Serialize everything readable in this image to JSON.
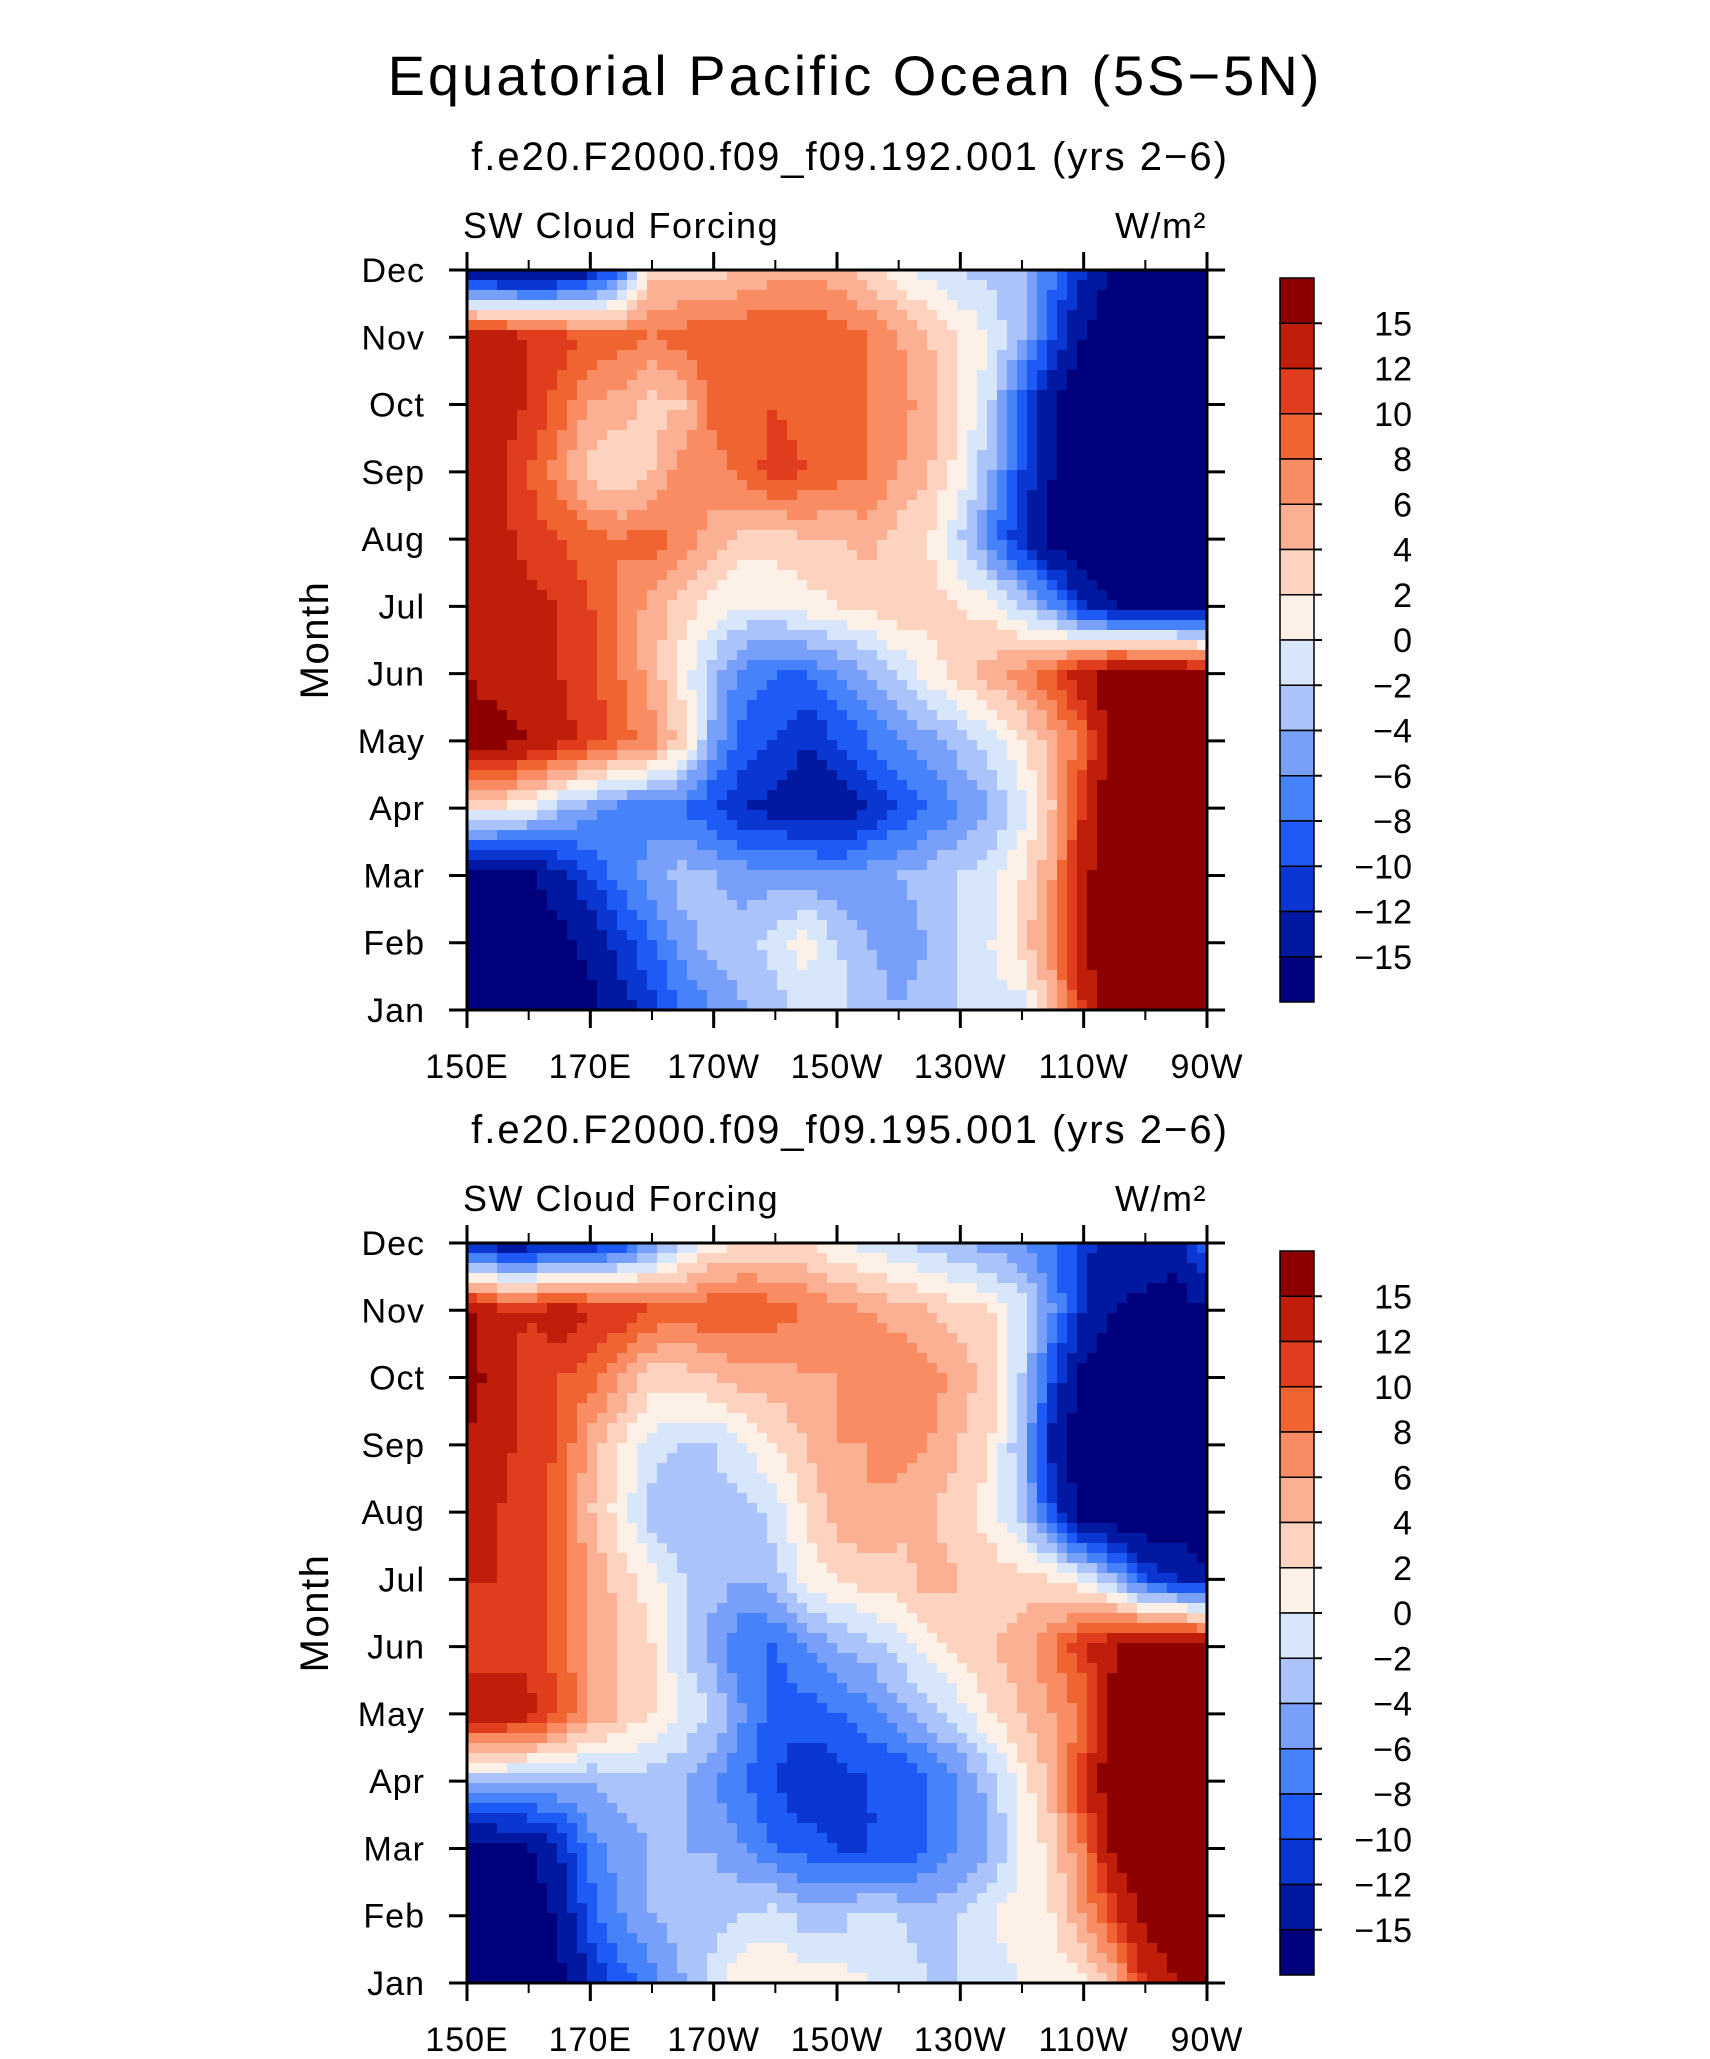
{
  "title": "Equatorial Pacific Ocean (5S−5N)",
  "chart_data": [
    {
      "type": "heatmap",
      "title": "f.e20.F2000.f09_f09.192.001 (yrs 2−6)",
      "variable": "SW Cloud Forcing",
      "units": "W/m²",
      "ylabel": "Month",
      "xlabel": "",
      "x_ticks": [
        "150E",
        "170E",
        "170W",
        "150W",
        "130W",
        "110W",
        "90W"
      ],
      "x": [
        150,
        155,
        160,
        165,
        170,
        175,
        180,
        185,
        190,
        195,
        200,
        205,
        210,
        215,
        220,
        225,
        230,
        235,
        240,
        245,
        250,
        255,
        260,
        265,
        270
      ],
      "y": [
        "Jan",
        "Feb",
        "Mar",
        "Apr",
        "May",
        "Jun",
        "Jul",
        "Aug",
        "Sep",
        "Oct",
        "Nov",
        "Dec"
      ],
      "xlim": [
        150,
        270
      ],
      "ylim": [
        "Jan",
        "Dec"
      ],
      "colorbar_levels": [
        -15,
        -12,
        -10,
        -8,
        -6,
        -4,
        -2,
        0,
        2,
        4,
        6,
        8,
        10,
        12,
        15
      ],
      "colorbar_labels": [
        "15",
        "12",
        "10",
        "8",
        "6",
        "4",
        "2",
        "0",
        "−2",
        "−4",
        "−6",
        "−8",
        "−10",
        "−12",
        "−15"
      ],
      "z": [
        [
          -18,
          -18,
          -18,
          -17,
          -16,
          -13,
          -11,
          -8,
          -6,
          -4,
          -3,
          -1,
          -1,
          -3,
          -4,
          -3,
          -2,
          -1,
          -1,
          5,
          12,
          18,
          18,
          18,
          18
        ],
        [
          -18,
          -18,
          -17,
          -16,
          -14,
          -11,
          -8,
          -5,
          -3,
          -3,
          -1,
          1,
          -2,
          -4,
          -5,
          -4,
          -2,
          0,
          3,
          7,
          15,
          18,
          18,
          18,
          18
        ],
        [
          -18,
          -18,
          -16,
          -13,
          -10,
          -7,
          -5,
          -3,
          -4,
          -5,
          -5,
          -5,
          -6,
          -5,
          -4,
          -3,
          -2,
          -1,
          2,
          6,
          14,
          18,
          18,
          18,
          18
        ],
        [
          2,
          2,
          0,
          -3,
          -5,
          -7,
          -7,
          -8,
          -10,
          -12,
          -13,
          -14,
          -14,
          -12,
          -10,
          -8,
          -6,
          -4,
          -1,
          4,
          12,
          18,
          18,
          18,
          18
        ],
        [
          16,
          16,
          15,
          13,
          11,
          9,
          7,
          3,
          -5,
          -9,
          -10,
          -12,
          -10,
          -8,
          -6,
          -5,
          -3,
          -1,
          2,
          5,
          9,
          18,
          18,
          18,
          18
        ],
        [
          15,
          14,
          14,
          12,
          11,
          8,
          5,
          1,
          -3,
          -7,
          -8,
          -8,
          -6,
          -4,
          -2,
          1,
          3,
          5,
          7,
          10,
          14,
          17,
          17,
          17,
          15
        ],
        [
          14,
          14,
          13,
          12,
          10,
          8,
          5,
          3,
          1,
          0,
          0,
          1,
          2,
          2,
          4,
          3,
          2,
          1,
          -2,
          -6,
          -12,
          -15,
          -16,
          -16,
          -16
        ],
        [
          12,
          13,
          11,
          10,
          9,
          8,
          9,
          7,
          5,
          3,
          3,
          4,
          4,
          5,
          3,
          2,
          -2,
          -7,
          -12,
          -16,
          -18,
          -18,
          -18,
          -18,
          -18
        ],
        [
          14,
          13,
          10,
          7,
          3,
          2,
          4,
          7,
          7,
          9,
          11,
          10,
          9,
          8,
          6,
          4,
          1,
          -4,
          -10,
          -15,
          -18,
          -18,
          -18,
          -18,
          -18
        ],
        [
          15,
          13,
          12,
          9,
          6,
          5,
          3,
          4,
          9,
          9,
          10,
          9,
          8,
          8,
          7,
          5,
          2,
          -2,
          -9,
          -15,
          -18,
          -18,
          -18,
          -18,
          -18
        ],
        [
          14,
          14,
          12,
          11,
          10,
          9,
          8,
          9,
          10,
          10,
          10,
          10,
          9,
          8,
          6,
          4,
          2,
          0,
          -4,
          -10,
          -15,
          -17,
          -18,
          -18,
          -18
        ],
        [
          -16,
          -17,
          -17,
          -16,
          -13,
          -8,
          3,
          3,
          3,
          4,
          5,
          5,
          5,
          3,
          1,
          -1,
          -2,
          -3,
          -4,
          -7,
          -12,
          -16,
          -17,
          -17,
          -17
        ]
      ]
    },
    {
      "type": "heatmap",
      "title": "f.e20.F2000.f09_f09.195.001 (yrs 2−6)",
      "variable": "SW Cloud Forcing",
      "units": "W/m²",
      "ylabel": "Month",
      "xlabel": "",
      "x_ticks": [
        "150E",
        "170E",
        "170W",
        "150W",
        "130W",
        "110W",
        "90W"
      ],
      "x": [
        150,
        155,
        160,
        165,
        170,
        175,
        180,
        185,
        190,
        195,
        200,
        205,
        210,
        215,
        220,
        225,
        230,
        235,
        240,
        245,
        250,
        255,
        260,
        265,
        270
      ],
      "y": [
        "Jan",
        "Feb",
        "Mar",
        "Apr",
        "May",
        "Jun",
        "Jul",
        "Aug",
        "Sep",
        "Oct",
        "Nov",
        "Dec"
      ],
      "xlim": [
        150,
        270
      ],
      "ylim": [
        "Jan",
        "Dec"
      ],
      "colorbar_levels": [
        -15,
        -12,
        -10,
        -8,
        -6,
        -4,
        -2,
        0,
        2,
        4,
        6,
        8,
        10,
        12,
        15
      ],
      "colorbar_labels": [
        "15",
        "12",
        "10",
        "8",
        "6",
        "4",
        "2",
        "0",
        "−2",
        "−4",
        "−6",
        "−8",
        "−10",
        "−12",
        "−15"
      ],
      "z": [
        [
          -18,
          -18,
          -18,
          -16,
          -12,
          -9,
          -7,
          -4,
          -1,
          2,
          2,
          1,
          1,
          0,
          -1,
          -2,
          -2,
          -1,
          0,
          1,
          1,
          5,
          12,
          15,
          18
        ],
        [
          -18,
          -18,
          -18,
          -14,
          -9,
          -6,
          -4,
          -3,
          -3,
          -2,
          -1,
          -3,
          -3,
          -1,
          -2,
          -3,
          -2,
          0,
          1,
          2,
          6,
          11,
          16,
          18,
          18
        ],
        [
          -16,
          -16,
          -15,
          -12,
          -7,
          -5,
          -4,
          -4,
          -4,
          -6,
          -8,
          -9,
          -10,
          -10,
          -10,
          -8,
          -6,
          -4,
          0,
          3,
          8,
          16,
          18,
          18,
          18
        ],
        [
          -3,
          -3,
          -4,
          -4,
          -4,
          -3,
          -3,
          -4,
          -6,
          -8,
          -10,
          -12,
          -11,
          -10,
          -10,
          -8,
          -6,
          -3,
          1,
          5,
          12,
          18,
          18,
          18,
          18
        ],
        [
          14,
          14,
          13,
          10,
          6,
          4,
          2,
          0,
          -2,
          -6,
          -9,
          -9,
          -8,
          -7,
          -5,
          -3,
          -1,
          2,
          4,
          6,
          8,
          16,
          18,
          18,
          18
        ],
        [
          11,
          11,
          11,
          9,
          6,
          4,
          2,
          -2,
          -5,
          -8,
          -8,
          -6,
          -4,
          -3,
          -1,
          1,
          3,
          4,
          5,
          8,
          12,
          15,
          17,
          17,
          16
        ],
        [
          12,
          12,
          11,
          9,
          6,
          3,
          1,
          -2,
          -3,
          -4,
          -3,
          1,
          2,
          3,
          3,
          5,
          4,
          3,
          3,
          2,
          0,
          -4,
          -10,
          -12,
          -14
        ],
        [
          12,
          12,
          11,
          9,
          4,
          1,
          -3,
          -4,
          -3,
          -3,
          -1,
          2,
          5,
          6,
          5,
          4,
          3,
          1,
          -3,
          -10,
          -17,
          -18,
          -18,
          -18,
          -18
        ],
        [
          15,
          13,
          11,
          10,
          5,
          2,
          -1,
          -2,
          -2,
          0,
          2,
          4,
          6,
          6,
          7,
          6,
          4,
          2,
          -4,
          -13,
          -18,
          -18,
          -18,
          -18,
          -18
        ],
        [
          16,
          14,
          11,
          10,
          9,
          6,
          3,
          3,
          4,
          5,
          5,
          6,
          6,
          7,
          8,
          7,
          5,
          3,
          -2,
          -10,
          -16,
          -18,
          -18,
          -18,
          -18
        ],
        [
          16,
          13,
          12,
          14,
          12,
          12,
          10,
          9,
          10,
          10,
          9,
          8,
          7,
          6,
          5,
          4,
          3,
          2,
          -1,
          -6,
          -12,
          -15,
          -16,
          -17,
          -15
        ],
        [
          -14,
          -14,
          -14,
          -13,
          -12,
          -10,
          -6,
          -2,
          1,
          2,
          2,
          2,
          0,
          -1,
          -2,
          -3,
          -4,
          -5,
          -6,
          -8,
          -11,
          -14,
          -13,
          -13,
          -8
        ]
      ]
    }
  ],
  "colors": {
    "levels_palette": [
      "#00007d",
      "#0019a0",
      "#0a37d2",
      "#1e5af5",
      "#4682fa",
      "#78a0fa",
      "#aac3fa",
      "#d7e6fa",
      "#fdf0e6",
      "#fdd2be",
      "#fcb093",
      "#fa8c64",
      "#f06432",
      "#e03c1e",
      "#be1e0a",
      "#8c0000"
    ]
  }
}
